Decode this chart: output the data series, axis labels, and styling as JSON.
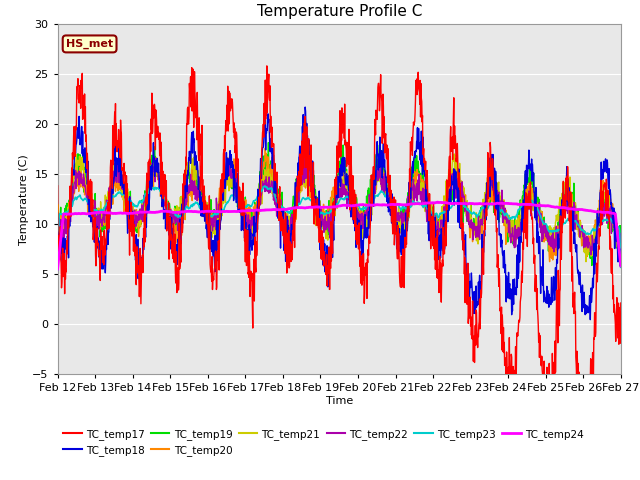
{
  "title": "Temperature Profile C",
  "xlabel": "Time",
  "ylabel": "Temperature (C)",
  "ylim": [
    -5,
    30
  ],
  "xlim": [
    0,
    360
  ],
  "annotation": "HS_met",
  "plot_bg": "#e8e8e8",
  "fig_bg": "#ffffff",
  "series": {
    "TC_temp17": {
      "color": "#ff0000",
      "lw": 1.0,
      "zorder": 5
    },
    "TC_temp18": {
      "color": "#0000dd",
      "lw": 1.0,
      "zorder": 4
    },
    "TC_temp19": {
      "color": "#00dd00",
      "lw": 1.0,
      "zorder": 3
    },
    "TC_temp20": {
      "color": "#ff8800",
      "lw": 1.0,
      "zorder": 3
    },
    "TC_temp21": {
      "color": "#cccc00",
      "lw": 1.0,
      "zorder": 3
    },
    "TC_temp22": {
      "color": "#aa00aa",
      "lw": 1.0,
      "zorder": 3
    },
    "TC_temp23": {
      "color": "#00cccc",
      "lw": 1.2,
      "zorder": 3
    },
    "TC_temp24": {
      "color": "#ff00ff",
      "lw": 2.0,
      "zorder": 6
    }
  },
  "xtick_labels": [
    "Feb 12",
    "Feb 13",
    "Feb 14",
    "Feb 15",
    "Feb 16",
    "Feb 17",
    "Feb 18",
    "Feb 19",
    "Feb 20",
    "Feb 21",
    "Feb 22",
    "Feb 23",
    "Feb 24",
    "Feb 25",
    "Feb 26",
    "Feb 27"
  ],
  "xtick_positions": [
    0,
    24,
    48,
    72,
    96,
    120,
    144,
    168,
    192,
    216,
    240,
    264,
    288,
    312,
    336,
    360
  ],
  "yticks": [
    -5,
    0,
    5,
    10,
    15,
    20,
    25,
    30
  ],
  "grid_color": "#ffffff",
  "legend_ncol1": 6,
  "legend_ncol2": 2
}
